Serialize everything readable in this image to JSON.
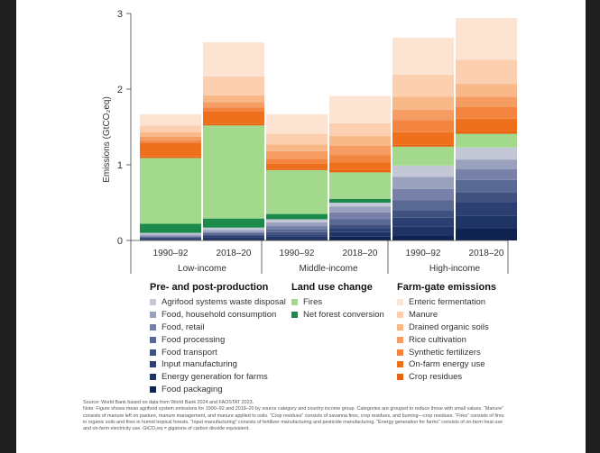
{
  "chart_data": {
    "type": "bar",
    "stacked": true,
    "ylabel": "Emissions (GtCO₂eq)",
    "ylim": [
      0,
      3
    ],
    "yticks": [
      "0",
      "1",
      "2",
      "3"
    ],
    "groups": [
      "Low-income",
      "Middle-income",
      "High-income"
    ],
    "categories": [
      "1990–92",
      "2018–20",
      "1990–92",
      "2018–20",
      "1990–92",
      "2018–20"
    ],
    "category_group": [
      0,
      0,
      1,
      1,
      2,
      2
    ],
    "series": [
      {
        "name": "Food packaging",
        "color": "#0f2350",
        "values": [
          0.01,
          0.02,
          0.02,
          0.05,
          0.07,
          0.16
        ]
      },
      {
        "name": "Energy generation for farms",
        "color": "#1d3465",
        "values": [
          0.01,
          0.02,
          0.03,
          0.06,
          0.11,
          0.17
        ]
      },
      {
        "name": "Input manufacturing",
        "color": "#2b3f73",
        "values": [
          0.01,
          0.02,
          0.03,
          0.05,
          0.12,
          0.17
        ]
      },
      {
        "name": "Food transport",
        "color": "#40517f",
        "values": [
          0.01,
          0.02,
          0.03,
          0.05,
          0.1,
          0.14
        ]
      },
      {
        "name": "Food processing",
        "color": "#5a6894",
        "values": [
          0.01,
          0.02,
          0.04,
          0.07,
          0.13,
          0.16
        ]
      },
      {
        "name": "Food, retail",
        "color": "#7780a8",
        "values": [
          0.01,
          0.01,
          0.04,
          0.09,
          0.15,
          0.14
        ]
      },
      {
        "name": "Food, household consumption",
        "color": "#9aa1bd",
        "values": [
          0.02,
          0.03,
          0.05,
          0.08,
          0.16,
          0.13
        ]
      },
      {
        "name": "Agrifood systems waste disposal",
        "color": "#c3c7d6",
        "values": [
          0.02,
          0.03,
          0.04,
          0.05,
          0.15,
          0.16
        ]
      },
      {
        "name": "Net forest conversion",
        "color": "#1b8a4a",
        "values": [
          0.12,
          0.12,
          0.07,
          0.05,
          0.0,
          0.0
        ]
      },
      {
        "name": "Fires",
        "color": "#a3d98c",
        "values": [
          0.87,
          1.23,
          0.58,
          0.35,
          0.25,
          0.18
        ]
      },
      {
        "name": "Crop residues",
        "color": "#e66410",
        "values": [
          0.02,
          0.02,
          0.02,
          0.03,
          0.03,
          0.03
        ]
      },
      {
        "name": "On-farm energy use",
        "color": "#ee6f1c",
        "values": [
          0.18,
          0.17,
          0.07,
          0.1,
          0.16,
          0.17
        ]
      },
      {
        "name": "Synthetic fertilizers",
        "color": "#f38540",
        "values": [
          0.03,
          0.05,
          0.06,
          0.1,
          0.16,
          0.16
        ]
      },
      {
        "name": "Rice cultivation",
        "color": "#f59c62",
        "values": [
          0.05,
          0.07,
          0.1,
          0.12,
          0.14,
          0.13
        ]
      },
      {
        "name": "Drained organic soils",
        "color": "#f8b888",
        "values": [
          0.06,
          0.09,
          0.09,
          0.13,
          0.17,
          0.17
        ]
      },
      {
        "name": "Manure",
        "color": "#fbcfb0",
        "values": [
          0.09,
          0.25,
          0.14,
          0.17,
          0.29,
          0.32
        ]
      },
      {
        "name": "Enteric fermentation",
        "color": "#fde4d2",
        "values": [
          0.15,
          0.45,
          0.26,
          0.36,
          0.49,
          0.55
        ]
      }
    ]
  },
  "legend": [
    {
      "title": "Pre- and post-production",
      "items": [
        "Agrifood systems waste disposal",
        "Food, household consumption",
        "Food, retail",
        "Food processing",
        "Food transport",
        "Input manufacturing",
        "Energy generation for farms",
        "Food packaging"
      ]
    },
    {
      "title": "Land use change",
      "items": [
        "Fires",
        "Net forest conversion"
      ]
    },
    {
      "title": "Farm-gate emissions",
      "items": [
        "Enteric fermentation",
        "Manure",
        "Drained organic soils",
        "Rice cultivation",
        "Synthetic fertilizers",
        "On-farm energy use",
        "Crop residues"
      ]
    }
  ],
  "footnote": {
    "source": "Source: World Bank based on data from World Bank 2024 and FAOSTAT 2023.",
    "note": "Note: Figure shows mean agrifood system emissions for 1990–92 and 2018–20 by source category and country income group. Categories are grouped to reduce those with small values. “Manure” consists of manure left on pasture, manure management, and manure applied to soils. “Crop residues” consists of savanna fires, crop residues, and burning—crop residues. “Fires” consists of fires in organic soils and fires in humid tropical forests. “Input manufacturing” consists of fertilizer manufacturing and pesticide manufacturing. “Energy generation for farms” consists of on-farm heat use and on-farm electricity use. GtCO₂eq = gigatons of carbon dioxide equivalent."
  }
}
